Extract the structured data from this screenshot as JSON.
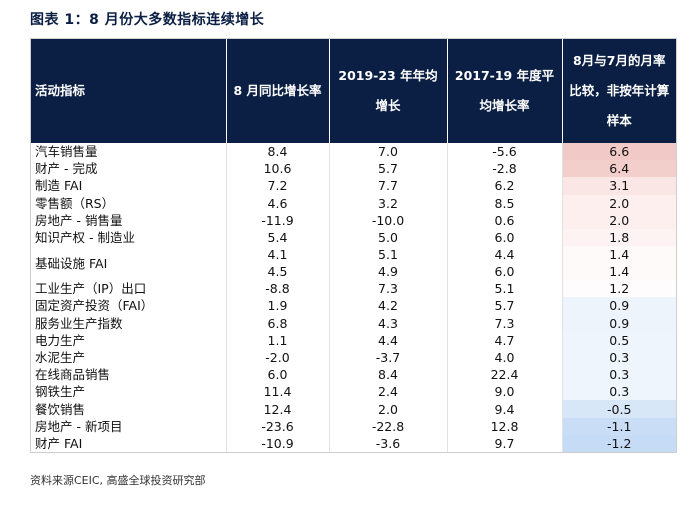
{
  "title": "图表 1：8 月份大多数指标连续增长",
  "table": {
    "headers": [
      "活动指标",
      "8 月同比增长率",
      "2019-23 年年均增长",
      "2017-19 年度平均增长率",
      "8月与7月的月率比较，非按年计算样本"
    ],
    "rows": [
      {
        "label": "汽车销售量",
        "v1": "8.4",
        "v2": "7.0",
        "v3": "-5.6",
        "v4": "6.6",
        "bg": "#f1c9c6",
        "tall": false
      },
      {
        "label": "财产 - 完成",
        "v1": "10.6",
        "v2": "5.7",
        "v3": "-2.8",
        "v4": "6.4",
        "bg": "#f3cfcc",
        "tall": false
      },
      {
        "label": "制造 FAI",
        "v1": "7.2",
        "v2": "7.7",
        "v3": "6.2",
        "v4": "3.1",
        "bg": "#fae6e4",
        "tall": false
      },
      {
        "label": "零售额（RS）",
        "v1": "4.6",
        "v2": "3.2",
        "v3": "8.5",
        "v4": "2.0",
        "bg": "#fcefee",
        "tall": false
      },
      {
        "label": "房地产 - 销售量",
        "v1": "-11.9",
        "v2": "-10.0",
        "v3": "0.6",
        "v4": "2.0",
        "bg": "#fcefee",
        "tall": false
      },
      {
        "label": "知识产权 - 制造业",
        "v1": "5.4",
        "v2": "5.0",
        "v3": "6.0",
        "v4": "1.8",
        "bg": "#fdf3f2",
        "tall": false
      },
      {
        "label": "基础设施 FAI",
        "v1": "4.1\n4.5",
        "v2": "5.1\n4.9",
        "v3": "4.4\n6.0",
        "v4": "1.4\n1.4",
        "bg": "#fefafa",
        "tall": true
      },
      {
        "label": "工业生产（IP）出口",
        "v1": "-8.8",
        "v2": "7.3",
        "v3": "5.1",
        "v4": "1.2",
        "bg": "#fefcfc",
        "tall": false
      },
      {
        "label": "固定资产投资（FAI）",
        "v1": "1.9",
        "v2": "4.2",
        "v3": "5.7",
        "v4": "0.9",
        "bg": "#edf4fc",
        "tall": false
      },
      {
        "label": "服务业生产指数",
        "v1": "6.8",
        "v2": "4.3",
        "v3": "7.3",
        "v4": "0.9",
        "bg": "#edf4fc",
        "tall": false
      },
      {
        "label": "电力生产",
        "v1": "1.1",
        "v2": "4.4",
        "v3": "4.7",
        "v4": "0.5",
        "bg": "#eef5fc",
        "tall": false
      },
      {
        "label": "水泥生产",
        "v1": "-2.0",
        "v2": "-3.7",
        "v3": "4.0",
        "v4": "0.3",
        "bg": "#eef5fc",
        "tall": false
      },
      {
        "label": "在线商品销售",
        "v1": "6.0",
        "v2": "8.4",
        "v3": "22.4",
        "v4": "0.3",
        "bg": "#eef5fc",
        "tall": false
      },
      {
        "label": "钢铁生产",
        "v1": "11.4",
        "v2": "2.4",
        "v3": "9.0",
        "v4": "0.3",
        "bg": "#eef5fc",
        "tall": false
      },
      {
        "label": "餐饮销售",
        "v1": "12.4",
        "v2": "2.0",
        "v3": "9.4",
        "v4": "-0.5",
        "bg": "#d8e7f8",
        "tall": false
      },
      {
        "label": "房地产 - 新项目",
        "v1": "-23.6",
        "v2": "-22.8",
        "v3": "12.8",
        "v4": "-1.1",
        "bg": "#c9def6",
        "tall": false
      },
      {
        "label": "财产 FAI",
        "v1": "-10.9",
        "v2": "-3.6",
        "v3": "9.7",
        "v4": "-1.2",
        "bg": "#c6dbf5",
        "tall": false
      }
    ]
  },
  "source_note": "资料来源CEIC, 高盛全球投资研究部",
  "colors": {
    "header_bg": "#0b1f44",
    "header_text": "#ffffff"
  }
}
